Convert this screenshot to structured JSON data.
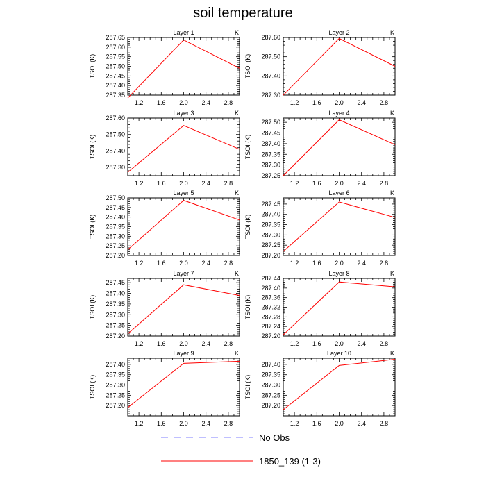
{
  "title": "soil temperature",
  "colors": {
    "model": "#ff0000",
    "obs": "#7f7fff",
    "axis": "#000000"
  },
  "legend": [
    {
      "label": "No Obs",
      "style": "dashed",
      "color": "#7f7fff"
    },
    {
      "label": "1850_139 (1-3)",
      "style": "solid",
      "color": "#ff0000"
    }
  ],
  "chart_data": [
    {
      "type": "line",
      "title": "Layer 1",
      "ylabel": "TSOI  (K)",
      "units": "K",
      "xlim": [
        1.0,
        3.0
      ],
      "xticks": [
        1.2,
        1.6,
        2.0,
        2.4,
        2.8
      ],
      "xtick_labels": [
        "1.2",
        "1.6",
        "2.0",
        "2.4",
        "2.8"
      ],
      "ylim": [
        287.35,
        287.65
      ],
      "yticks": [
        287.35,
        287.4,
        287.45,
        287.5,
        287.55,
        287.6,
        287.65
      ],
      "ytick_labels": [
        "287.35",
        "287.40",
        "287.45",
        "287.50",
        "287.55",
        "287.60",
        "287.65"
      ],
      "series": [
        {
          "name": "1850_139 (1-3)",
          "x": [
            1.0,
            2.0,
            3.0
          ],
          "values": [
            287.335,
            287.637,
            287.49
          ]
        }
      ]
    },
    {
      "type": "line",
      "title": "Layer 2",
      "ylabel": "TSOI  (K)",
      "units": "K",
      "xlim": [
        1.0,
        3.0
      ],
      "xticks": [
        1.2,
        1.6,
        2.0,
        2.4,
        2.8
      ],
      "xtick_labels": [
        "1.2",
        "1.6",
        "2.0",
        "2.4",
        "2.8"
      ],
      "ylim": [
        287.3,
        287.6
      ],
      "yticks": [
        287.3,
        287.4,
        287.5,
        287.6
      ],
      "ytick_labels": [
        "287.30",
        "287.40",
        "287.50",
        "287.60"
      ],
      "series": [
        {
          "name": "1850_139 (1-3)",
          "x": [
            1.0,
            2.0,
            3.0
          ],
          "values": [
            287.3,
            287.595,
            287.45
          ]
        }
      ]
    },
    {
      "type": "line",
      "title": "Layer 3",
      "ylabel": "TSOI  (K)",
      "units": "K",
      "xlim": [
        1.0,
        3.0
      ],
      "xticks": [
        1.2,
        1.6,
        2.0,
        2.4,
        2.8
      ],
      "xtick_labels": [
        "1.2",
        "1.6",
        "2.0",
        "2.4",
        "2.8"
      ],
      "ylim": [
        287.25,
        287.6
      ],
      "yticks": [
        287.3,
        287.4,
        287.5,
        287.6
      ],
      "ytick_labels": [
        "287.30",
        "287.40",
        "287.50",
        "287.60"
      ],
      "series": [
        {
          "name": "1850_139 (1-3)",
          "x": [
            1.0,
            2.0,
            3.0
          ],
          "values": [
            287.27,
            287.555,
            287.41
          ]
        }
      ]
    },
    {
      "type": "line",
      "title": "Layer 4",
      "ylabel": "TSOI  (K)",
      "units": "K",
      "xlim": [
        1.0,
        3.0
      ],
      "xticks": [
        1.2,
        1.6,
        2.0,
        2.4,
        2.8
      ],
      "xtick_labels": [
        "1.2",
        "1.6",
        "2.0",
        "2.4",
        "2.8"
      ],
      "ylim": [
        287.25,
        287.52
      ],
      "yticks": [
        287.25,
        287.3,
        287.35,
        287.4,
        287.45,
        287.5
      ],
      "ytick_labels": [
        "287.25",
        "287.30",
        "287.35",
        "287.40",
        "287.45",
        "287.50"
      ],
      "series": [
        {
          "name": "1850_139 (1-3)",
          "x": [
            1.0,
            2.0,
            3.0
          ],
          "values": [
            287.25,
            287.512,
            287.395
          ]
        }
      ]
    },
    {
      "type": "line",
      "title": "Layer 5",
      "ylabel": "TSOI  (K)",
      "units": "K",
      "xlim": [
        1.0,
        3.0
      ],
      "xticks": [
        1.2,
        1.6,
        2.0,
        2.4,
        2.8
      ],
      "xtick_labels": [
        "1.2",
        "1.6",
        "2.0",
        "2.4",
        "2.8"
      ],
      "ylim": [
        287.2,
        287.5
      ],
      "yticks": [
        287.2,
        287.25,
        287.3,
        287.35,
        287.4,
        287.45,
        287.5
      ],
      "ytick_labels": [
        "287.20",
        "287.25",
        "287.30",
        "287.35",
        "287.40",
        "287.45",
        "287.50"
      ],
      "series": [
        {
          "name": "1850_139 (1-3)",
          "x": [
            1.0,
            2.0,
            3.0
          ],
          "values": [
            287.23,
            287.487,
            287.385
          ]
        }
      ]
    },
    {
      "type": "line",
      "title": "Layer 6",
      "ylabel": "TSOI  (K)",
      "units": "K",
      "xlim": [
        1.0,
        3.0
      ],
      "xticks": [
        1.2,
        1.6,
        2.0,
        2.4,
        2.8
      ],
      "xtick_labels": [
        "1.2",
        "1.6",
        "2.0",
        "2.4",
        "2.8"
      ],
      "ylim": [
        287.2,
        287.48
      ],
      "yticks": [
        287.2,
        287.25,
        287.3,
        287.35,
        287.4,
        287.45
      ],
      "ytick_labels": [
        "287.20",
        "287.25",
        "287.30",
        "287.35",
        "287.40",
        "287.45"
      ],
      "series": [
        {
          "name": "1850_139 (1-3)",
          "x": [
            1.0,
            2.0,
            3.0
          ],
          "values": [
            287.22,
            287.46,
            287.385
          ]
        }
      ]
    },
    {
      "type": "line",
      "title": "Layer 7",
      "ylabel": "TSOI  (K)",
      "units": "K",
      "xlim": [
        1.0,
        3.0
      ],
      "xticks": [
        1.2,
        1.6,
        2.0,
        2.4,
        2.8
      ],
      "xtick_labels": [
        "1.2",
        "1.6",
        "2.0",
        "2.4",
        "2.8"
      ],
      "ylim": [
        287.2,
        287.47
      ],
      "yticks": [
        287.2,
        287.25,
        287.3,
        287.35,
        287.4,
        287.45
      ],
      "ytick_labels": [
        "287.20",
        "287.25",
        "287.30",
        "287.35",
        "287.40",
        "287.45"
      ],
      "series": [
        {
          "name": "1850_139 (1-3)",
          "x": [
            1.0,
            2.0,
            3.0
          ],
          "values": [
            287.21,
            287.44,
            287.39
          ]
        }
      ]
    },
    {
      "type": "line",
      "title": "Layer 8",
      "ylabel": "TSOI  (K)",
      "units": "K",
      "xlim": [
        1.0,
        3.0
      ],
      "xticks": [
        1.2,
        1.6,
        2.0,
        2.4,
        2.8
      ],
      "xtick_labels": [
        "1.2",
        "1.6",
        "2.0",
        "2.4",
        "2.8"
      ],
      "ylim": [
        287.2,
        287.44
      ],
      "yticks": [
        287.2,
        287.24,
        287.28,
        287.32,
        287.36,
        287.4,
        287.44
      ],
      "ytick_labels": [
        "287.20",
        "287.24",
        "287.28",
        "287.32",
        "287.36",
        "287.40",
        "287.44"
      ],
      "series": [
        {
          "name": "1850_139 (1-3)",
          "x": [
            1.0,
            2.0,
            3.0
          ],
          "values": [
            287.205,
            287.425,
            287.405
          ]
        }
      ]
    },
    {
      "type": "line",
      "title": "Layer 9",
      "ylabel": "TSOI  (K)",
      "units": "K",
      "xlim": [
        1.0,
        3.0
      ],
      "xticks": [
        1.2,
        1.6,
        2.0,
        2.4,
        2.8
      ],
      "xtick_labels": [
        "1.2",
        "1.6",
        "2.0",
        "2.4",
        "2.8"
      ],
      "ylim": [
        287.15,
        287.43
      ],
      "yticks": [
        287.2,
        287.25,
        287.3,
        287.35,
        287.4
      ],
      "ytick_labels": [
        "287.20",
        "287.25",
        "287.30",
        "287.35",
        "287.40"
      ],
      "series": [
        {
          "name": "1850_139 (1-3)",
          "x": [
            1.0,
            2.0,
            3.0
          ],
          "values": [
            287.19,
            287.405,
            287.415
          ]
        }
      ]
    },
    {
      "type": "line",
      "title": "Layer 10",
      "ylabel": "TSOI  (K)",
      "units": "K",
      "xlim": [
        1.0,
        3.0
      ],
      "xticks": [
        1.2,
        1.6,
        2.0,
        2.4,
        2.8
      ],
      "xtick_labels": [
        "1.2",
        "1.6",
        "2.0",
        "2.4",
        "2.8"
      ],
      "ylim": [
        287.15,
        287.43
      ],
      "yticks": [
        287.2,
        287.25,
        287.3,
        287.35,
        287.4
      ],
      "ytick_labels": [
        "287.20",
        "287.25",
        "287.30",
        "287.35",
        "287.40"
      ],
      "series": [
        {
          "name": "1850_139 (1-3)",
          "x": [
            1.0,
            2.0,
            3.0
          ],
          "values": [
            287.18,
            287.395,
            287.425
          ]
        }
      ]
    }
  ]
}
